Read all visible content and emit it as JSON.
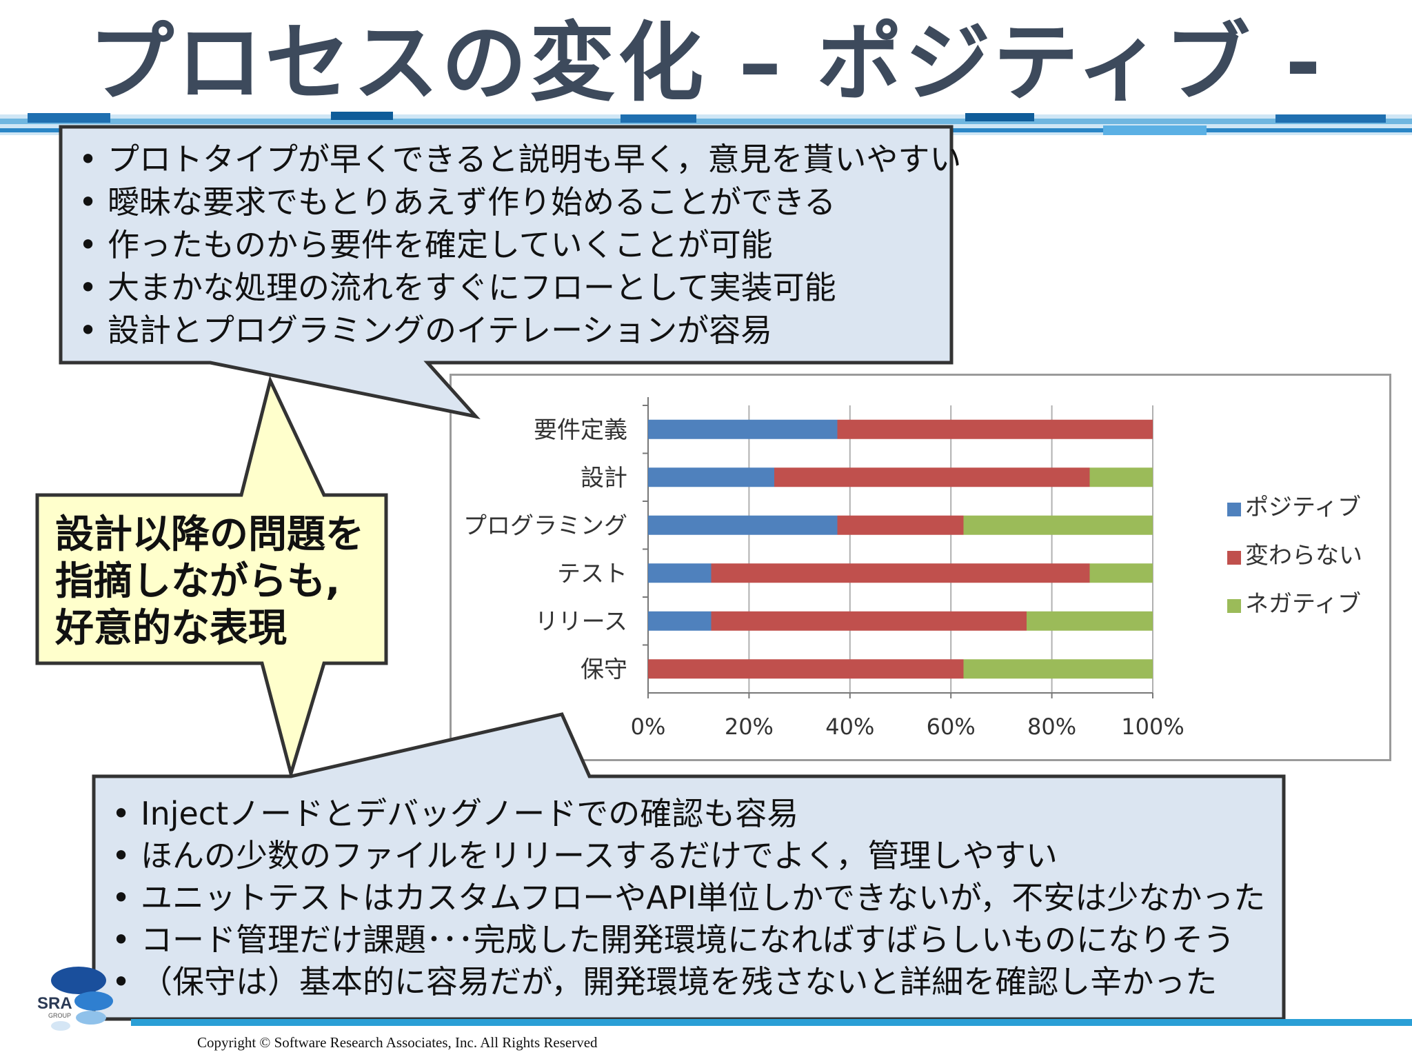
{
  "title": "プロセスの変化 – ポジティブ -",
  "top_bubble": {
    "items": [
      "プロトタイプが早くできると説明も早く，意見を貰いやすい",
      "曖昧な要求でもとりあえず作り始めることができる",
      "作ったものから要件を確定していくことが可能",
      "大まかな処理の流れをすぐにフローとして実装可能",
      "設計とプログラミングのイテレーションが容易"
    ]
  },
  "left_note": {
    "lines": [
      "設計以降の問題を",
      "指摘しながらも,",
      "好意的な表現"
    ]
  },
  "bottom_bubble": {
    "items": [
      "Injectノードとデバッグノードでの確認も容易",
      "ほんの少数のファイルをリリースするだけでよく，管理しやすい",
      "ユニットテストはカスタムフローやAPI単位しかできないが，不安は少なかった",
      "コード管理だけ課題･･･完成した開発環境になればすばらしいものになりそう",
      "（保守は）基本的に容易だが，開発環境を残さないと詳細を確認し辛かった"
    ]
  },
  "logo": {
    "text": "SRA",
    "sub": "GROUP"
  },
  "copyright": "Copyright © Software Research Associates,  Inc. All Rights Reserved",
  "chart_data": {
    "type": "bar",
    "orientation": "horizontal",
    "stacked": "percent",
    "categories": [
      "要件定義",
      "設計",
      "プログラミング",
      "テスト",
      "リリース",
      "保守"
    ],
    "series": [
      {
        "name": "ポジティブ",
        "color": "#4f81bd",
        "values": [
          37.5,
          25,
          37.5,
          12.5,
          12.5,
          0
        ]
      },
      {
        "name": "変わらない",
        "color": "#c0504d",
        "values": [
          62.5,
          62.5,
          25,
          75,
          62.5,
          62.5
        ]
      },
      {
        "name": "ネガティブ",
        "color": "#9bbb59",
        "values": [
          0,
          12.5,
          37.5,
          12.5,
          25,
          37.5
        ]
      }
    ],
    "xlim": [
      0,
      100
    ],
    "xticks": [
      "0%",
      "20%",
      "40%",
      "60%",
      "80%",
      "100%"
    ],
    "grid": true,
    "legend": "right"
  },
  "colors": {
    "bubble_fill": "#dbe5f1",
    "note_fill": "#ffffcc",
    "title": "#3d4a5c"
  }
}
